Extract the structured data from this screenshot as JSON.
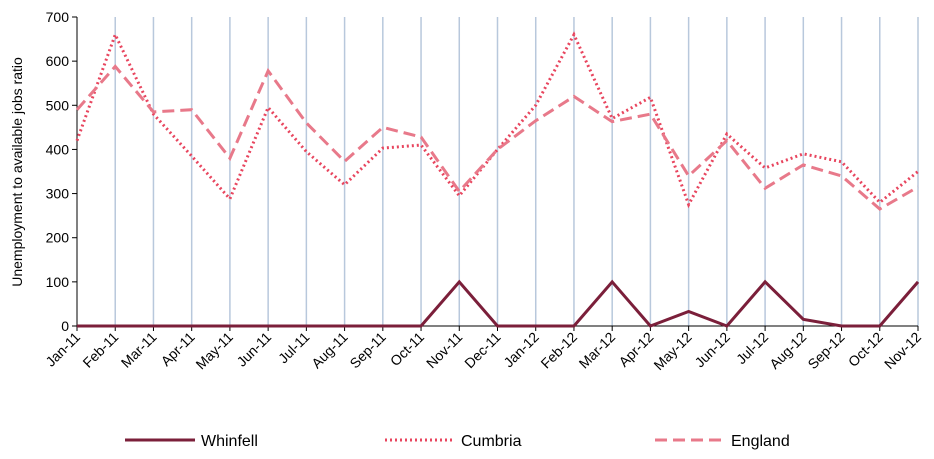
{
  "chart_data": {
    "type": "line",
    "y_label": "Unemployment to available jobs ratio",
    "categories": [
      "Jan-11",
      "Feb-11",
      "Mar-11",
      "Apr-11",
      "May-11",
      "Jun-11",
      "Jul-11",
      "Aug-11",
      "Sep-11",
      "Oct-11",
      "Nov-11",
      "Dec-11",
      "Jan-12",
      "Feb-12",
      "Mar-12",
      "Apr-12",
      "May-12",
      "Jun-12",
      "Jul-12",
      "Aug-12",
      "Sep-12",
      "Oct-12",
      "Nov-12"
    ],
    "series": [
      {
        "name": "Whinfell",
        "color": "#7b1f3a",
        "dash": "solid",
        "values": [
          0,
          0,
          0,
          0,
          0,
          0,
          0,
          0,
          0,
          0,
          100,
          0,
          0,
          0,
          100,
          0,
          33,
          0,
          100,
          15,
          0,
          0,
          100
        ]
      },
      {
        "name": "Cumbria",
        "color": "#e8455e",
        "dash": "dotted",
        "values": [
          420,
          660,
          480,
          385,
          288,
          495,
          395,
          320,
          403,
          410,
          295,
          400,
          500,
          660,
          470,
          518,
          275,
          435,
          358,
          390,
          372,
          280,
          350
        ]
      },
      {
        "name": "England",
        "color": "#e8798a",
        "dash": "dashed",
        "values": [
          490,
          588,
          485,
          490,
          380,
          578,
          460,
          373,
          450,
          428,
          305,
          400,
          465,
          520,
          463,
          480,
          340,
          420,
          312,
          365,
          340,
          265,
          315
        ]
      }
    ],
    "ylim": [
      0,
      700
    ],
    "yticks": [
      0,
      100,
      200,
      300,
      400,
      500,
      600,
      700
    ],
    "grid": "vertical",
    "legend": "bottom"
  }
}
